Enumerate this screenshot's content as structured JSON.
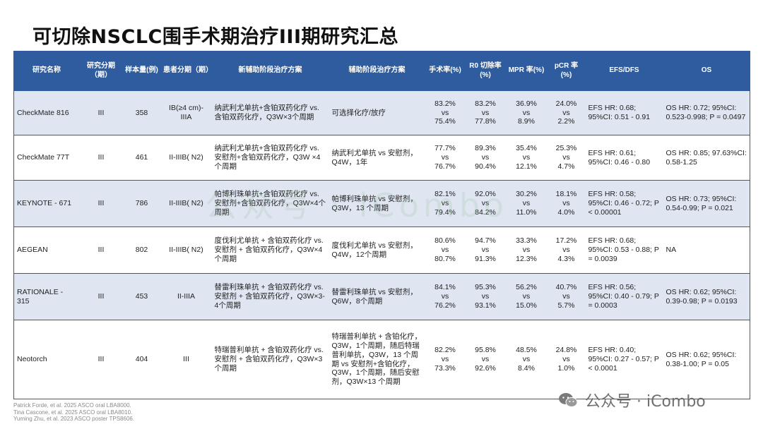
{
  "title": "可切除NSCLC围手术期治疗III期研究汇总",
  "header": [
    "研究名称",
    "研究分期（期）",
    "样本量(例)",
    "患者分期（期）",
    "新辅助阶段治疗方案",
    "辅助阶段治疗方案",
    "手术率(%)",
    "R0 切除率 (%)",
    "MPR 率(%)",
    "pCR 率 (%)",
    "EFS/DFS",
    "OS"
  ],
  "vs_label": "vs",
  "rows": [
    {
      "name": "CheckMate 816",
      "phase": "III",
      "n": "358",
      "stage": "IB(≥4 cm)-IIIA",
      "neoadjuvant": "纳武利尤单抗+含铂双药化疗 vs. 含铂双药化疗，Q3W×3个周期",
      "adjuvant": "可选择化疗/放疗",
      "surgery": [
        "83.2%",
        "75.4%"
      ],
      "r0": [
        "83.2%",
        "77.8%"
      ],
      "mpr": [
        "36.9%",
        "8.9%"
      ],
      "pcr": [
        "24.0%",
        "2.2%"
      ],
      "efs": "EFS HR: 0.68; 95%CI: 0.51 - 0.91",
      "os": "OS HR: 0.72; 95%CI: 0.523-0.998; P = 0.0497"
    },
    {
      "name": "CheckMate 77T",
      "phase": "III",
      "n": "461",
      "stage": "II-IIIB( N2)",
      "neoadjuvant": "纳武利尤单抗+含铂双药化疗 vs. 安慰剂+含铂双药化疗，Q3W ×4个周期",
      "adjuvant": "纳武利尤单抗 vs 安慰剂，Q4W，1年",
      "surgery": [
        "77.7%",
        "76.7%"
      ],
      "r0": [
        "89.3%",
        "90.4%"
      ],
      "mpr": [
        "35.4%",
        "12.1%"
      ],
      "pcr": [
        "25.3%",
        "4.7%"
      ],
      "efs": "EFS HR: 0.61; 95%CI: 0.46 - 0.80",
      "os": "OS HR: 0.85; 97.63%CI: 0.58-1.25"
    },
    {
      "name": "KEYNOTE - 671",
      "phase": "III",
      "n": "786",
      "stage": "II-IIIB( N2)",
      "neoadjuvant": "帕博利珠单抗+含铂双药化疗 vs. 安慰剂+含铂双药化疗，Q3W×4个周期",
      "adjuvant": "帕博利珠单抗 vs 安慰剂，Q3W，13 个周期",
      "surgery": [
        "82.1%",
        "79.4%"
      ],
      "r0": [
        "92.0%",
        "84.2%"
      ],
      "mpr": [
        "30.2%",
        "11.0%"
      ],
      "pcr": [
        "18.1%",
        "4.0%"
      ],
      "efs": "EFS HR: 0.58; 95%CI: 0.46 - 0.72; P < 0.00001",
      "os": "OS HR: 0.73; 95%CI: 0.54-0.99; P = 0.021"
    },
    {
      "name": "AEGEAN",
      "phase": "III",
      "n": "802",
      "stage": "II-IIIB( N2)",
      "neoadjuvant": "度伐利尤单抗 + 含铂双药化疗 vs. 安慰剂 + 含铂双药化疗，Q3W×4个周期",
      "adjuvant": "度伐利尤单抗 vs 安慰剂，Q4W，12个周期",
      "surgery": [
        "80.6%",
        "80.7%"
      ],
      "r0": [
        "94.7%",
        "91.3%"
      ],
      "mpr": [
        "33.3%",
        "12.3%"
      ],
      "pcr": [
        "17.2%",
        "4.3%"
      ],
      "efs": "EFS HR: 0.68; 95%CI: 0.53 - 0.88; P = 0.0039",
      "os": "NA"
    },
    {
      "name": "RATIONALE - 315",
      "phase": "III",
      "n": "453",
      "stage": "II-IIIA",
      "neoadjuvant": "替雷利珠单抗 + 含铂双药化疗 vs. 安慰剂 + 含铂双药化疗，Q3W×3-4个周期",
      "adjuvant": "替雷利珠单抗 vs 安慰剂，Q6W，8个周期",
      "surgery": [
        "84.1%",
        "76.2%"
      ],
      "r0": [
        "95.3%",
        "93.1%"
      ],
      "mpr": [
        "56.2%",
        "15.0%"
      ],
      "pcr": [
        "40.7%",
        "5.7%"
      ],
      "efs": "EFS HR: 0.56; 95%CI: 0.40 - 0.79; P = 0.0003",
      "os": "OS HR: 0.62; 95%CI: 0.39-0.98; P = 0.0193"
    },
    {
      "name": "Neotorch",
      "phase": "III",
      "n": "404",
      "stage": "III",
      "neoadjuvant": "特瑞普利单抗 + 含铂双药化疗 vs. 安慰剂 + 含铂双药化疗，Q3W×3个周期",
      "adjuvant": "特瑞普利单抗 + 含铂化疗，Q3W，1个周期，随后特瑞普利单抗，Q3W，13 个周期 vs 安慰剂+含铂化疗，Q3W，1个周期，随后安慰剂，Q3W×13 个周期",
      "surgery": [
        "82.2%",
        "73.3%"
      ],
      "r0": [
        "95.8%",
        "92.6%"
      ],
      "mpr": [
        "48.5%",
        "8.4%"
      ],
      "pcr": [
        "24.8%",
        "1.0%"
      ],
      "efs": "EFS HR: 0.40; 95%CI: 0.27 - 0.57; P < 0.0001",
      "os": "OS HR: 0.62; 95%CI: 0.38-1.00; P = 0.05"
    }
  ],
  "references": [
    "Patrick Forde, et al. 2025 ASCO oral LBA8000.",
    "Tina Cascone, et al. 2025 ASCO oral LBA8010.",
    "Yuming Zhu, et al. 2023 ASCO poster TPS8606."
  ],
  "watermark": {
    "center_text": "公众号 · iCombo",
    "corner_text": "公众号 · iCombo",
    "icon": "wechat-icon"
  },
  "colors": {
    "header_bg": "#2e5c9e",
    "alt_row_bg": "#dfe6f2",
    "title": "#111111"
  }
}
